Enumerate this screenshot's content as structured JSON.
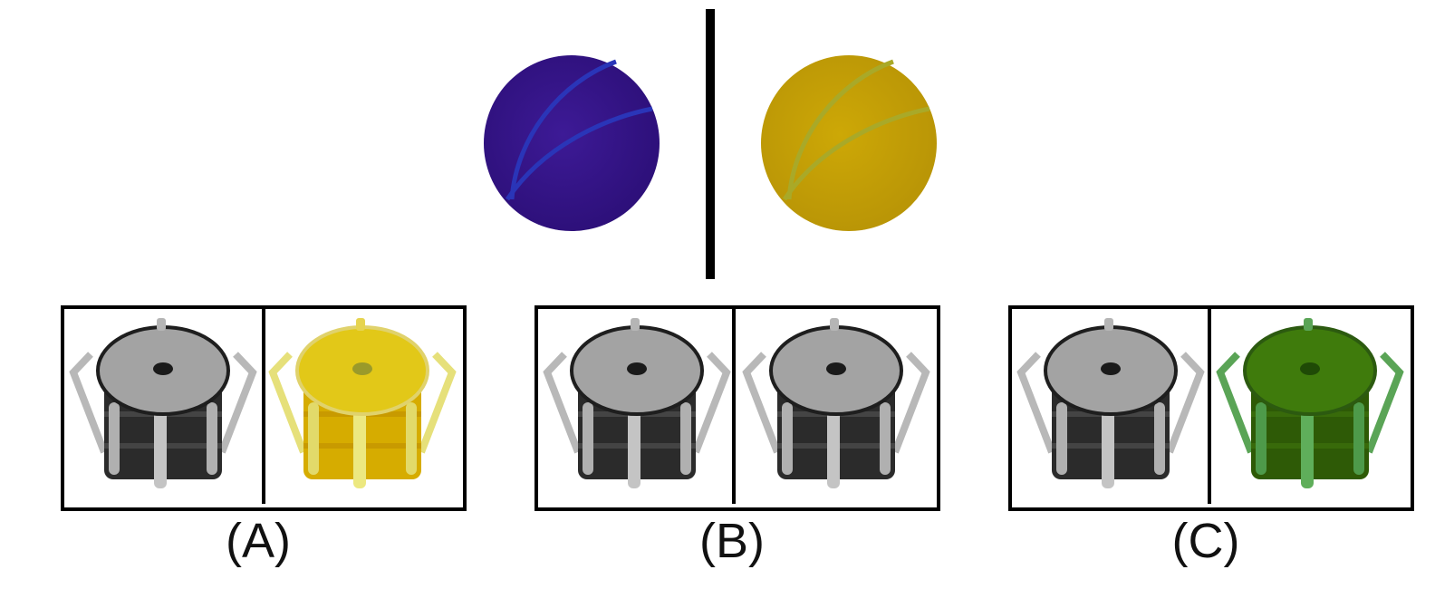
{
  "example": {
    "left_object": {
      "name": "basketball",
      "color": "#35138a",
      "seam_color": "#2a2fb0"
    },
    "right_object": {
      "name": "basketball",
      "color": "#c8a406",
      "seam_color": "#a8a81a"
    }
  },
  "options": [
    {
      "label": "(A)",
      "left": {
        "name": "drum",
        "tint": "gray"
      },
      "right": {
        "name": "drum",
        "tint": "yellow",
        "body": "#d8b000",
        "top": "#e4c818",
        "rim": "#e8e070"
      }
    },
    {
      "label": "(B)",
      "left": {
        "name": "drum",
        "tint": "gray"
      },
      "right": {
        "name": "drum",
        "tint": "gray"
      }
    },
    {
      "label": "(C)",
      "left": {
        "name": "drum",
        "tint": "gray"
      },
      "right": {
        "name": "drum",
        "tint": "green",
        "body": "#2f5a08",
        "top": "#3e7a0c",
        "rim": "#58a050"
      }
    }
  ]
}
